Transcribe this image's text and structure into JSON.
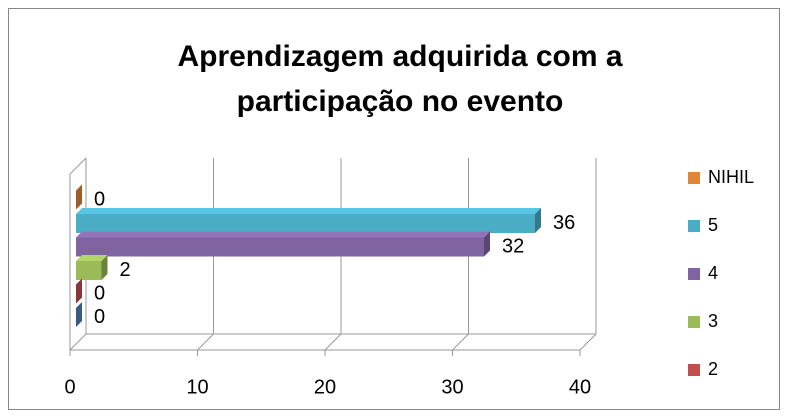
{
  "chart_data": {
    "type": "bar",
    "orientation": "horizontal",
    "title": [
      "Aprendizagem adquirida com a",
      "participação no evento"
    ],
    "series": [
      {
        "name": "NIHIL",
        "color": "#e0863a",
        "values": [
          0
        ]
      },
      {
        "name": "5",
        "color": "#4bacc6",
        "values": [
          36
        ]
      },
      {
        "name": "4",
        "color": "#8064a2",
        "values": [
          32
        ]
      },
      {
        "name": "3",
        "color": "#9bbb59",
        "values": [
          2
        ]
      },
      {
        "name": "2",
        "color": "#c0504d",
        "values": [
          0
        ]
      },
      {
        "color": "#4f81bd",
        "values": [
          0
        ]
      }
    ],
    "xlim": [
      0,
      40
    ],
    "xticks": [
      0,
      10,
      20,
      30,
      40
    ],
    "grid": true,
    "legend": "right"
  }
}
